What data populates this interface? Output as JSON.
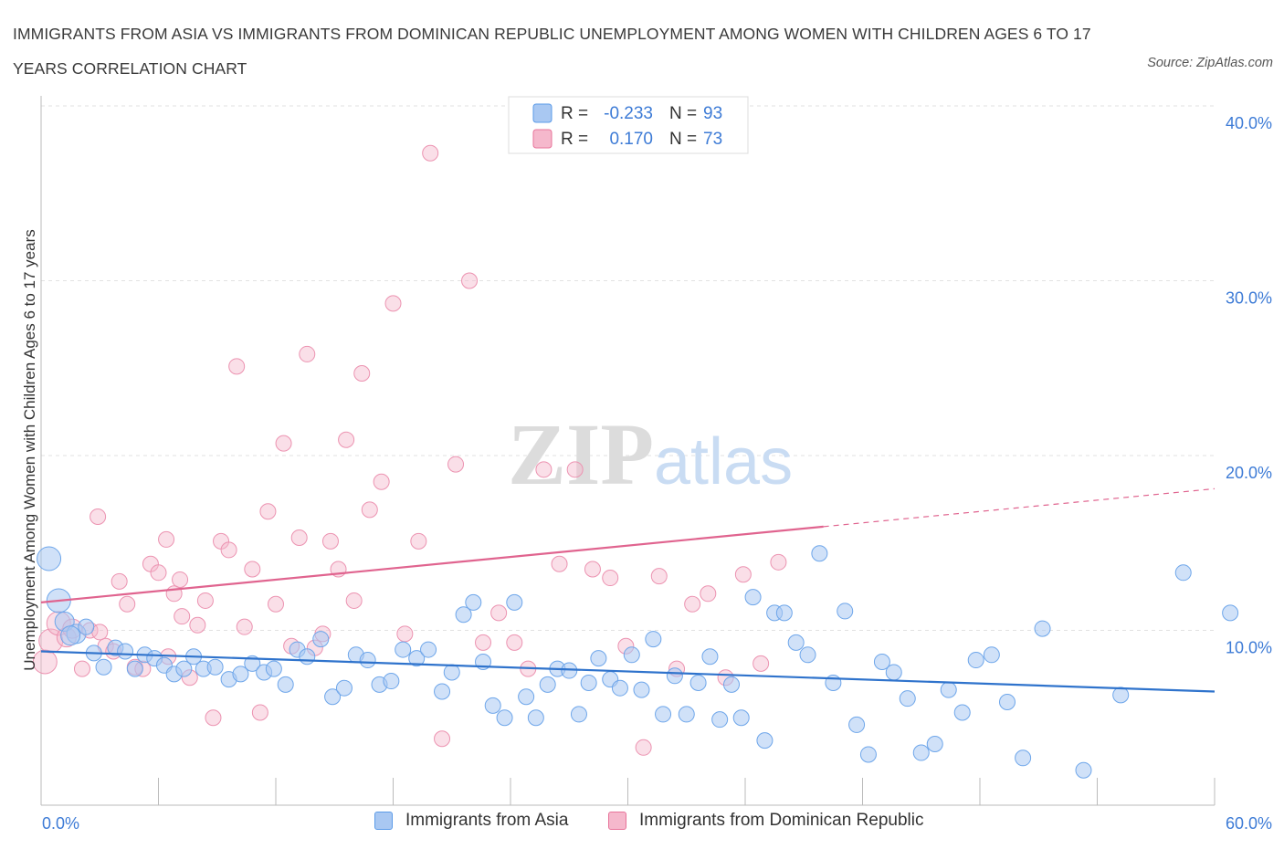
{
  "title": "IMMIGRANTS FROM ASIA VS IMMIGRANTS FROM DOMINICAN REPUBLIC UNEMPLOYMENT AMONG WOMEN WITH CHILDREN AGES 6 TO 17 YEARS CORRELATION CHART",
  "source": "Source: ZipAtlas.com",
  "watermark": {
    "zip": "ZIP",
    "atlas": "atlas"
  },
  "colors": {
    "asia": "#5b9be8",
    "asia_fill": "#a9c8f2",
    "dr": "#e8739a",
    "dr_fill": "#f5b8cc",
    "axis_text": "#3d7bd6"
  },
  "legend": {
    "rows": [
      {
        "r_label": "R =",
        "r_value": "-0.233",
        "n_label": "N =",
        "n_value": "93"
      },
      {
        "r_label": "R =",
        "r_value": "0.170",
        "n_label": "N =",
        "n_value": "73"
      }
    ]
  },
  "bottom_legend": [
    "Immigrants from Asia",
    "Immigrants from Dominican Republic"
  ],
  "chart_data": {
    "type": "scatter",
    "xlabel": "",
    "ylabel": "Unemployment Among Women with Children Ages 6 to 17 years",
    "xlim": [
      0,
      60
    ],
    "ylim": [
      0,
      40
    ],
    "x_tick_labels": [
      "0.0%",
      "60.0%"
    ],
    "y_tick_labels": [
      "10.0%",
      "20.0%",
      "30.0%",
      "40.0%"
    ],
    "y_ticks": [
      10,
      20,
      30,
      40
    ],
    "grid": true,
    "series": [
      {
        "name": "Immigrants from Asia",
        "trend": {
          "x": [
            0,
            60
          ],
          "y": [
            8.8,
            6.5
          ],
          "solid_to": 60
        },
        "points": [
          [
            0.4,
            14.1
          ],
          [
            0.9,
            11.7
          ],
          [
            1.2,
            10.5
          ],
          [
            1.8,
            9.8
          ],
          [
            2.3,
            10.2
          ],
          [
            2.7,
            8.7
          ],
          [
            3.2,
            7.9
          ],
          [
            3.8,
            9.0
          ],
          [
            4.3,
            8.8
          ],
          [
            4.8,
            7.8
          ],
          [
            5.3,
            8.6
          ],
          [
            5.8,
            8.4
          ],
          [
            6.3,
            8.0
          ],
          [
            6.8,
            7.5
          ],
          [
            7.3,
            7.8
          ],
          [
            7.8,
            8.5
          ],
          [
            8.3,
            7.8
          ],
          [
            8.9,
            7.9
          ],
          [
            9.6,
            7.2
          ],
          [
            10.2,
            7.5
          ],
          [
            10.8,
            8.1
          ],
          [
            11.4,
            7.6
          ],
          [
            11.9,
            7.8
          ],
          [
            12.5,
            6.9
          ],
          [
            13.1,
            8.9
          ],
          [
            13.6,
            8.5
          ],
          [
            14.3,
            9.5
          ],
          [
            14.9,
            6.2
          ],
          [
            15.5,
            6.7
          ],
          [
            16.1,
            8.6
          ],
          [
            16.7,
            8.3
          ],
          [
            17.3,
            6.9
          ],
          [
            17.9,
            7.1
          ],
          [
            18.5,
            8.9
          ],
          [
            19.2,
            8.4
          ],
          [
            19.8,
            8.9
          ],
          [
            20.5,
            6.5
          ],
          [
            21.0,
            7.6
          ],
          [
            21.6,
            10.9
          ],
          [
            22.1,
            11.6
          ],
          [
            22.6,
            8.2
          ],
          [
            23.1,
            5.7
          ],
          [
            23.7,
            5.0
          ],
          [
            24.2,
            11.6
          ],
          [
            24.8,
            6.2
          ],
          [
            25.3,
            5.0
          ],
          [
            25.9,
            6.9
          ],
          [
            26.4,
            7.8
          ],
          [
            27.0,
            7.7
          ],
          [
            27.5,
            5.2
          ],
          [
            28.0,
            7.0
          ],
          [
            28.5,
            8.4
          ],
          [
            29.1,
            7.2
          ],
          [
            29.6,
            6.7
          ],
          [
            30.2,
            8.6
          ],
          [
            30.7,
            6.6
          ],
          [
            31.3,
            9.5
          ],
          [
            31.8,
            5.2
          ],
          [
            32.4,
            7.4
          ],
          [
            33.0,
            5.2
          ],
          [
            33.6,
            7.0
          ],
          [
            34.2,
            8.5
          ],
          [
            34.7,
            4.9
          ],
          [
            35.3,
            6.9
          ],
          [
            35.8,
            5.0
          ],
          [
            36.4,
            11.9
          ],
          [
            37.0,
            3.7
          ],
          [
            37.5,
            11.0
          ],
          [
            38.0,
            11.0
          ],
          [
            38.6,
            9.3
          ],
          [
            39.2,
            8.6
          ],
          [
            39.8,
            14.4
          ],
          [
            40.5,
            7.0
          ],
          [
            41.1,
            11.1
          ],
          [
            41.7,
            4.6
          ],
          [
            42.3,
            2.9
          ],
          [
            43.0,
            8.2
          ],
          [
            43.6,
            7.6
          ],
          [
            44.3,
            6.1
          ],
          [
            45.0,
            3.0
          ],
          [
            45.7,
            3.5
          ],
          [
            46.4,
            6.6
          ],
          [
            47.1,
            5.3
          ],
          [
            47.8,
            8.3
          ],
          [
            48.6,
            8.6
          ],
          [
            49.4,
            5.9
          ],
          [
            50.2,
            2.7
          ],
          [
            51.2,
            10.1
          ],
          [
            53.3,
            2.0
          ],
          [
            55.2,
            6.3
          ],
          [
            58.4,
            13.3
          ],
          [
            60.8,
            11.0
          ],
          [
            1.5,
            9.7
          ]
        ]
      },
      {
        "name": "Immigrants from Dominican Republic",
        "trend": {
          "x": [
            0,
            60
          ],
          "y": [
            11.6,
            18.1
          ],
          "solid_to": 40
        },
        "points": [
          [
            0.2,
            8.2
          ],
          [
            0.5,
            9.4
          ],
          [
            0.9,
            10.4
          ],
          [
            1.3,
            9.6
          ],
          [
            1.6,
            10.1
          ],
          [
            2.1,
            7.8
          ],
          [
            2.5,
            10.0
          ],
          [
            2.9,
            16.5
          ],
          [
            3.3,
            9.1
          ],
          [
            3.7,
            8.8
          ],
          [
            4.0,
            12.8
          ],
          [
            4.4,
            11.5
          ],
          [
            4.8,
            7.9
          ],
          [
            5.2,
            7.8
          ],
          [
            5.6,
            13.8
          ],
          [
            6.0,
            13.3
          ],
          [
            6.4,
            15.2
          ],
          [
            6.8,
            12.1
          ],
          [
            7.2,
            10.8
          ],
          [
            7.6,
            7.3
          ],
          [
            8.0,
            10.3
          ],
          [
            8.4,
            11.7
          ],
          [
            8.8,
            5.0
          ],
          [
            9.2,
            15.1
          ],
          [
            9.6,
            14.6
          ],
          [
            10.0,
            25.1
          ],
          [
            10.4,
            10.2
          ],
          [
            10.8,
            13.5
          ],
          [
            11.2,
            5.3
          ],
          [
            11.6,
            16.8
          ],
          [
            12.0,
            11.5
          ],
          [
            12.4,
            20.7
          ],
          [
            12.8,
            9.1
          ],
          [
            13.2,
            15.3
          ],
          [
            13.6,
            25.8
          ],
          [
            14.0,
            9.0
          ],
          [
            14.4,
            9.8
          ],
          [
            14.8,
            15.1
          ],
          [
            15.2,
            13.5
          ],
          [
            15.6,
            20.9
          ],
          [
            16.0,
            11.7
          ],
          [
            16.4,
            24.7
          ],
          [
            16.8,
            16.9
          ],
          [
            17.4,
            18.5
          ],
          [
            18.0,
            28.7
          ],
          [
            18.6,
            9.8
          ],
          [
            19.3,
            15.1
          ],
          [
            19.9,
            37.3
          ],
          [
            20.5,
            3.8
          ],
          [
            21.2,
            19.5
          ],
          [
            21.9,
            30.0
          ],
          [
            22.6,
            9.3
          ],
          [
            23.4,
            11.0
          ],
          [
            24.2,
            9.3
          ],
          [
            24.9,
            7.8
          ],
          [
            25.7,
            19.2
          ],
          [
            26.5,
            13.8
          ],
          [
            27.3,
            19.2
          ],
          [
            28.2,
            13.5
          ],
          [
            29.1,
            13.0
          ],
          [
            29.9,
            9.1
          ],
          [
            30.8,
            3.3
          ],
          [
            31.6,
            13.1
          ],
          [
            32.5,
            7.8
          ],
          [
            33.3,
            11.5
          ],
          [
            34.1,
            12.1
          ],
          [
            35.0,
            7.3
          ],
          [
            35.9,
            13.2
          ],
          [
            36.8,
            8.1
          ],
          [
            37.7,
            13.9
          ],
          [
            6.5,
            8.5
          ],
          [
            3.0,
            9.9
          ],
          [
            7.1,
            12.9
          ]
        ]
      }
    ]
  }
}
